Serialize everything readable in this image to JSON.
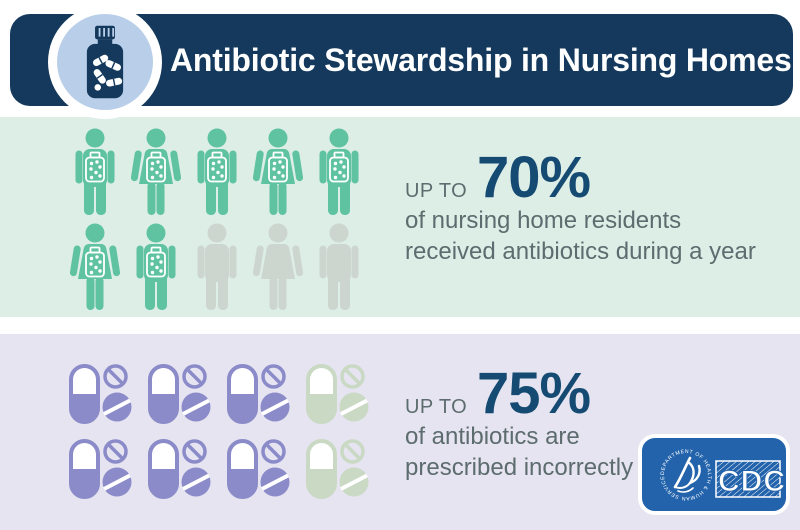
{
  "header": {
    "title": "Antibiotic Stewardship in Nursing Homes"
  },
  "stat_residents": {
    "prefix": "UP TO",
    "value": "70%",
    "line1": "of nursing home residents",
    "line2": "received antibiotics during a year"
  },
  "stat_prescriptions": {
    "prefix": "UP TO",
    "value": "75%",
    "line1": "of antibiotics are",
    "line2": "prescribed incorrectly"
  },
  "people": {
    "rows": [
      [
        {
          "gender": "male",
          "treated": true
        },
        {
          "gender": "female",
          "treated": true
        },
        {
          "gender": "male",
          "treated": true
        },
        {
          "gender": "female",
          "treated": true
        },
        {
          "gender": "male",
          "treated": true
        }
      ],
      [
        {
          "gender": "female",
          "treated": true
        },
        {
          "gender": "male",
          "treated": true
        },
        {
          "gender": "male",
          "treated": false
        },
        {
          "gender": "female",
          "treated": false
        },
        {
          "gender": "male",
          "treated": false
        }
      ]
    ]
  },
  "pills": {
    "rows": [
      [
        {
          "highlighted": true
        },
        {
          "highlighted": true
        },
        {
          "highlighted": true
        },
        {
          "highlighted": false
        }
      ],
      [
        {
          "highlighted": true
        },
        {
          "highlighted": true
        },
        {
          "highlighted": true
        },
        {
          "highlighted": false
        }
      ]
    ]
  },
  "cdc_logo": {
    "acronym": "CDC",
    "seal_text": "DEPARTMENT OF HEALTH & HUMAN SERVICES • USA •"
  },
  "icons": {
    "pill-bottle-icon": "medicine bottle with capsules inside (header badge)",
    "person-icon": "human figure pictogram (male/female)",
    "pill-group-icon": "capsule with crossed-out tablets",
    "hhs-eagle-icon": "HHS eagle seal",
    "cdc-wordmark": "CDC letters on hatched box"
  },
  "colors": {
    "navy": "#14395c",
    "icon_blue": "#b9cfe9",
    "green_bg": "#ddeee7",
    "teal": "#5fc3a2",
    "person_muted": "#cdd5cf",
    "lavender_bg": "#e5e4f0",
    "purple": "#8b8bc9",
    "pill_muted": "#c9d9c4",
    "stat_navy": "#154a72",
    "text_gray": "#5d6c6e",
    "cdc_blue": "#2263ab"
  },
  "chart_data": [
    {
      "type": "pictograph",
      "title": "UP TO 70% of nursing home residents received antibiotics during a year",
      "unit": "person",
      "total_icons": 10,
      "highlighted_icons": 7,
      "value_percent": 70,
      "layout": "2 rows x 5 icons",
      "highlight_color": "#5fc3a2",
      "muted_color": "#cdd5cf"
    },
    {
      "type": "pictograph",
      "title": "UP TO 75% of antibiotics are prescribed incorrectly",
      "unit": "pill-group",
      "total_icons": 8,
      "highlighted_icons": 6,
      "value_percent": 75,
      "layout": "2 rows x 4 icons",
      "highlight_color": "#8b8bc9",
      "muted_color": "#c9d9c4"
    }
  ]
}
